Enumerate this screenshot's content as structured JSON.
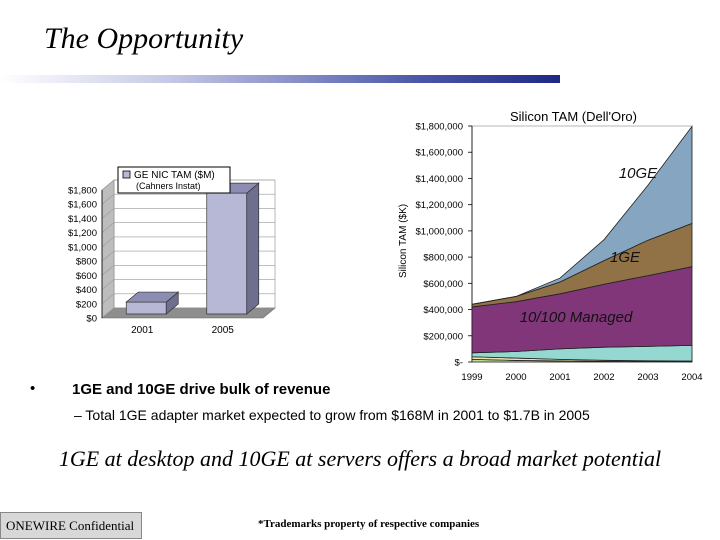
{
  "slide": {
    "title": "The Opportunity",
    "bullet": "1GE and 10GE drive bulk of revenue",
    "bullet_marker": "•",
    "sub_bullet": "– Total 1GE adapter market expected to grow from $168M in 2001 to $1.7B in 2005",
    "headline": "1GE at desktop and 10GE at servers offers a broad market potential",
    "footer_left": "ONEWIRE Confidential",
    "footer_center": "*Trademarks property of respective companies"
  },
  "chart_data": [
    {
      "type": "bar",
      "title": "GE NIC TAM ($M)",
      "subtitle": "(Cahners Instat)",
      "categories": [
        "2001",
        "2005"
      ],
      "values": [
        168,
        1700
      ],
      "ylim": [
        0,
        1800
      ],
      "yticks": [
        "$0",
        "$200",
        "$400",
        "$600",
        "$800",
        "$1,000",
        "$1,200",
        "$1,400",
        "$1,600",
        "$1,800"
      ],
      "colors": {
        "bar_2001": "#b7b7d6",
        "bar_2005": "#b7b7d6",
        "floor": "#8e8e8e",
        "wall": "#ffffff"
      },
      "grid": true,
      "style": "3d"
    },
    {
      "type": "area",
      "title": "Silicon TAM (Dell'Oro)",
      "ylabel": "Silicon TAM ($K)",
      "x": [
        "1999",
        "2000",
        "2001",
        "2002",
        "2003",
        "2004"
      ],
      "ylim": [
        0,
        1800000
      ],
      "yticks": [
        "$-",
        "$200,000",
        "$400,000",
        "$600,000",
        "$800,000",
        "$1,000,000",
        "$1,200,000",
        "$1,400,000",
        "$1,600,000",
        "$1,800,000"
      ],
      "grid": false,
      "stacked": true,
      "series": [
        {
          "name": "",
          "color": "#b9d98c",
          "values": [
            20000,
            12000,
            8000,
            5000,
            3000,
            2000
          ]
        },
        {
          "name": "",
          "color": "#e8e3a6",
          "values": [
            20000,
            18000,
            12000,
            8000,
            6000,
            5000
          ]
        },
        {
          "name": "",
          "color": "#8fd6d0",
          "values": [
            30000,
            50000,
            80000,
            100000,
            110000,
            120000
          ]
        },
        {
          "name": "10/100 Managed",
          "color": "#7a2b73",
          "values": [
            350000,
            380000,
            420000,
            480000,
            540000,
            600000
          ]
        },
        {
          "name": "1GE",
          "color": "#8a6a3c",
          "values": [
            20000,
            40000,
            90000,
            180000,
            270000,
            330000
          ]
        },
        {
          "name": "10GE",
          "color": "#7ea0bd",
          "values": [
            0,
            0,
            30000,
            160000,
            420000,
            740000
          ]
        }
      ]
    }
  ]
}
